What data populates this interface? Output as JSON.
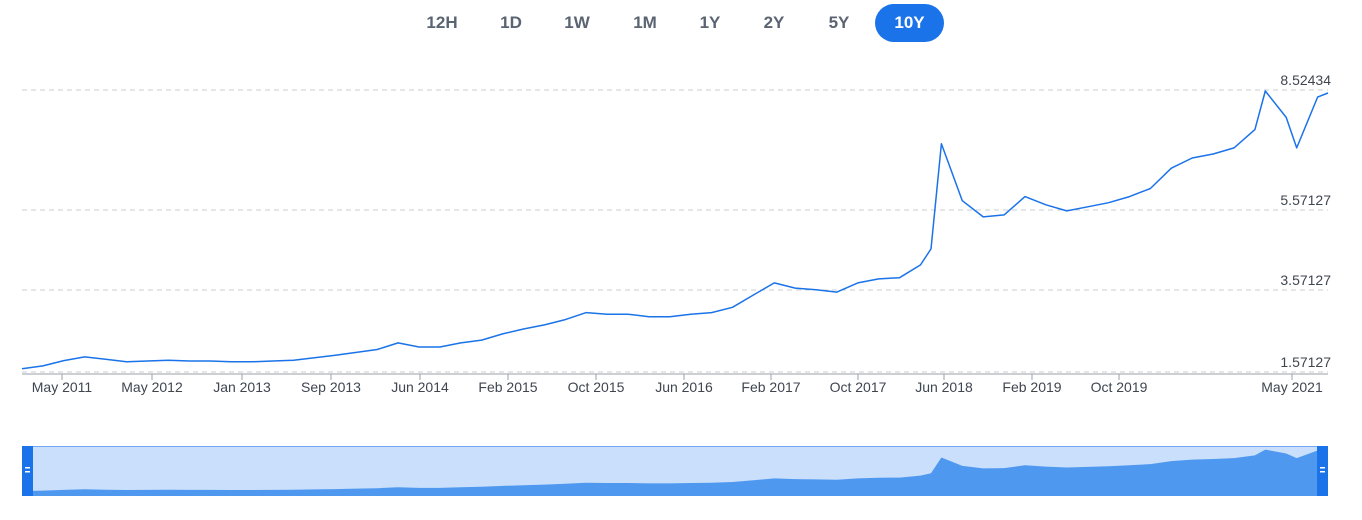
{
  "range_selector": {
    "buttons": [
      "12H",
      "1D",
      "1W",
      "1M",
      "1Y",
      "2Y",
      "5Y",
      "10Y"
    ],
    "active": "10Y"
  },
  "colors": {
    "line": "#1a73e8",
    "active_button": "#1a73e8",
    "navigator_fill": "#4f98f0",
    "navigator_window": "#c9dffb",
    "handle": "#1a73e8"
  },
  "chart_data": {
    "type": "line",
    "title": "",
    "xlabel": "",
    "ylabel": "",
    "ylim": [
      1.57127,
      8.52434
    ],
    "y_ticks": [
      "8.52434",
      "5.57127",
      "3.57127",
      "1.57127"
    ],
    "x_tick_labels": [
      "May 2011",
      "May 2012",
      "Jan 2013",
      "Sep 2013",
      "Jun 2014",
      "Feb 2015",
      "Oct 2015",
      "Jun 2016",
      "Feb 2017",
      "Oct 2017",
      "Jun 2018",
      "Feb 2019",
      "Oct 2019",
      "May 2021"
    ],
    "grid": true,
    "legend": "none",
    "x_range": [
      "2011-03",
      "2021-08"
    ],
    "series": [
      {
        "x": [
          "2011-03",
          "2011-05",
          "2011-07",
          "2011-09",
          "2011-11",
          "2012-01",
          "2012-03",
          "2012-05",
          "2012-07",
          "2012-09",
          "2012-11",
          "2013-01",
          "2013-03",
          "2013-05",
          "2013-07",
          "2013-09",
          "2013-11",
          "2014-01",
          "2014-03",
          "2014-05",
          "2014-07",
          "2014-09",
          "2014-11",
          "2015-01",
          "2015-03",
          "2015-05",
          "2015-07",
          "2015-09",
          "2015-11",
          "2016-01",
          "2016-03",
          "2016-05",
          "2016-07",
          "2016-09",
          "2016-11",
          "2017-01",
          "2017-03",
          "2017-05",
          "2017-07",
          "2017-09",
          "2017-11",
          "2018-01",
          "2018-03",
          "2018-05",
          "2018-06",
          "2018-07",
          "2018-09",
          "2018-11",
          "2019-01",
          "2019-03",
          "2019-05",
          "2019-07",
          "2019-09",
          "2019-11",
          "2020-01",
          "2020-03",
          "2020-05",
          "2020-07",
          "2020-09",
          "2020-11",
          "2021-01",
          "2021-02",
          "2021-04",
          "2021-05",
          "2021-07",
          "2021-08"
        ],
        "y": [
          1.65,
          1.72,
          1.85,
          1.94,
          1.88,
          1.82,
          1.84,
          1.86,
          1.84,
          1.84,
          1.82,
          1.82,
          1.84,
          1.86,
          1.92,
          1.98,
          2.05,
          2.12,
          2.28,
          2.18,
          2.18,
          2.28,
          2.35,
          2.5,
          2.62,
          2.72,
          2.85,
          3.02,
          2.98,
          2.98,
          2.92,
          2.92,
          2.98,
          3.02,
          3.15,
          3.45,
          3.75,
          3.62,
          3.58,
          3.52,
          3.75,
          3.85,
          3.88,
          4.2,
          4.6,
          7.2,
          5.8,
          5.4,
          5.45,
          5.9,
          5.7,
          5.55,
          5.65,
          5.75,
          5.9,
          6.1,
          6.6,
          6.85,
          6.95,
          7.1,
          7.55,
          8.5,
          7.85,
          7.1,
          8.35,
          8.45
        ]
      }
    ]
  }
}
